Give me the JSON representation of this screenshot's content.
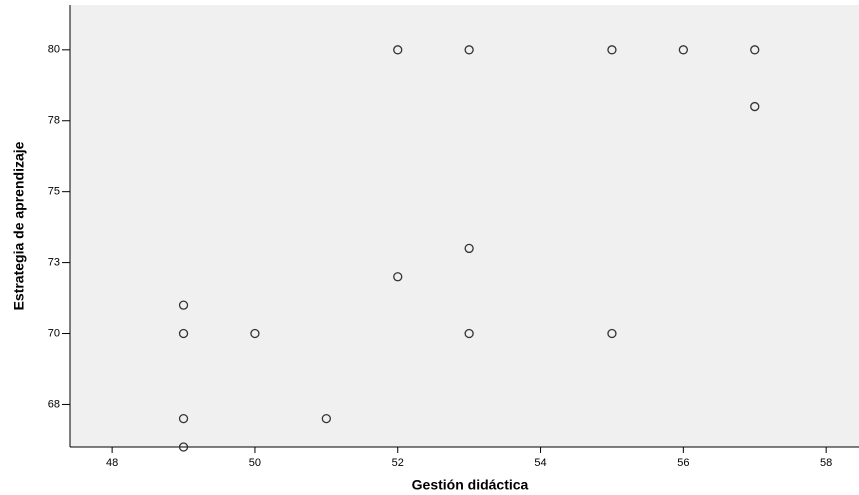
{
  "chart_data": {
    "type": "scatter",
    "xlabel": "Gestión didáctica",
    "ylabel": "Estrategia de aprendizaje",
    "x": [
      52,
      53,
      55,
      56,
      57,
      57,
      53,
      52,
      49,
      49,
      50,
      53,
      55,
      49,
      51,
      49
    ],
    "values": [
      80,
      80,
      80,
      80,
      80,
      78,
      73,
      72,
      71,
      70,
      70,
      70,
      70,
      67,
      67,
      66
    ],
    "color": "#333333",
    "xlim": [
      47.41,
      58.46
    ],
    "ylim": [
      66,
      81.58
    ],
    "xticks": [
      48,
      50,
      52,
      54,
      56,
      58
    ],
    "yticks": [
      80,
      {
        "value": 77.5,
        "label": "78"
      },
      75,
      {
        "value": 72.5,
        "label": "73"
      },
      70,
      {
        "value": 67.5,
        "label": "68"
      }
    ],
    "grid": false
  }
}
